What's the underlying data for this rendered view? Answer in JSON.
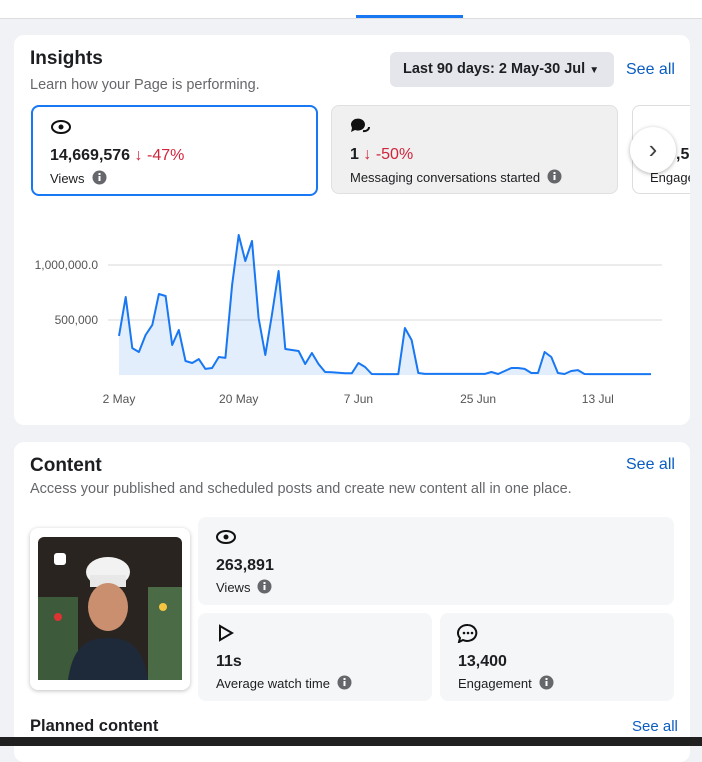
{
  "insights": {
    "title": "Insights",
    "subtitle": "Learn how your Page is performing.",
    "date_range": "Last 90 days: 2 May-30 Jul",
    "see_all": "See all",
    "metrics": [
      {
        "value": "14,669,576",
        "change": "-47%",
        "label": "Views"
      },
      {
        "value": "1",
        "change": "-50%",
        "label": "Messaging conversations started"
      },
      {
        "value": ",5",
        "label": "Engage"
      }
    ]
  },
  "chart_data": {
    "type": "line",
    "color": "#1877f2",
    "grid": true,
    "x": [
      0,
      1,
      2,
      3,
      4,
      5,
      6,
      7,
      8,
      9,
      10,
      11,
      12,
      13,
      14,
      15,
      16,
      17,
      18,
      19,
      20,
      21,
      22,
      23,
      24,
      25,
      26,
      27,
      28,
      29,
      30,
      31,
      32,
      33,
      34,
      35,
      36,
      37,
      38,
      39,
      40,
      41,
      42,
      43,
      44,
      45,
      46,
      47,
      48,
      49,
      50,
      51,
      52,
      53,
      54,
      55,
      56,
      57,
      58,
      59,
      60,
      61,
      62,
      63,
      64,
      65,
      66,
      67,
      68,
      69,
      70,
      71,
      72,
      73,
      74,
      75,
      76,
      77,
      78,
      79,
      80
    ],
    "values": [
      355000,
      709000,
      245000,
      209000,
      364000,
      455000,
      736000,
      718000,
      273000,
      409000,
      127000,
      109000,
      145000,
      55000,
      64000,
      164000,
      155000,
      818000,
      1273000,
      1036000,
      1218000,
      518000,
      182000,
      545000,
      945000,
      236000,
      227000,
      218000,
      100000,
      200000,
      100000,
      27000,
      25000,
      20000,
      15000,
      15000,
      109000,
      73000,
      9000,
      8000,
      8000,
      8000,
      8000,
      427000,
      318000,
      18000,
      10000,
      10000,
      10000,
      10000,
      10000,
      10000,
      10000,
      10000,
      10000,
      10000,
      27000,
      9000,
      36000,
      64000,
      64000,
      55000,
      18000,
      18000,
      209000,
      164000,
      18000,
      9000,
      36000,
      45000,
      9000,
      8000,
      8000,
      8000,
      8000,
      8000,
      8000,
      8000,
      8000,
      8000,
      8000
    ],
    "xlim": [
      0,
      80
    ],
    "xticks": [
      {
        "value": 0,
        "label": "2 May"
      },
      {
        "value": 18,
        "label": "20 May"
      },
      {
        "value": 36,
        "label": "7 Jun"
      },
      {
        "value": 54,
        "label": "25 Jun"
      },
      {
        "value": 72,
        "label": "13 Jul"
      }
    ],
    "ylim": [
      0,
      1400000
    ],
    "yticks": [
      {
        "value": 500000,
        "label": "500,000"
      },
      {
        "value": 1000000,
        "label": "1,000,000.0"
      }
    ]
  },
  "content": {
    "title": "Content",
    "subtitle": "Access your published and scheduled posts and create new content all in one place.",
    "see_all": "See all",
    "metrics": [
      {
        "value": "263,891",
        "label": "Views"
      },
      {
        "value": "11s",
        "label": "Average watch time"
      },
      {
        "value": "13,400",
        "label": "Engagement"
      }
    ],
    "planned": {
      "title": "Planned content",
      "see_all": "See all"
    }
  }
}
